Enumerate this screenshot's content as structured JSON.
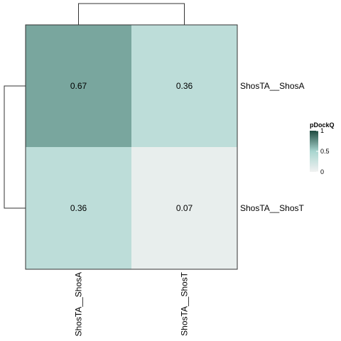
{
  "chart_data": {
    "type": "heatmap",
    "rows": [
      "ShosTA__ShosA",
      "ShosTA__ShosT"
    ],
    "columns": [
      "ShosTA__ShosA",
      "ShosTA__ShosT"
    ],
    "values": [
      [
        0.67,
        0.36
      ],
      [
        0.36,
        0.07
      ]
    ],
    "value_labels": [
      [
        "0.67",
        "0.36"
      ],
      [
        "0.36",
        "0.07"
      ]
    ],
    "value_range": [
      0,
      1
    ],
    "row_dendrogram": true,
    "column_dendrogram": true,
    "legend": {
      "title": "pDockQ",
      "ticks": [
        1,
        0.5,
        0
      ],
      "tick_labels": [
        "1",
        "0.5",
        "0"
      ],
      "placement": "right"
    },
    "colors": {
      "low": "#f2f2f2",
      "mid": "#a8d5cf",
      "high": "#1e4a3f",
      "grid_border": "#333333",
      "dendrogram": "#333333"
    }
  }
}
